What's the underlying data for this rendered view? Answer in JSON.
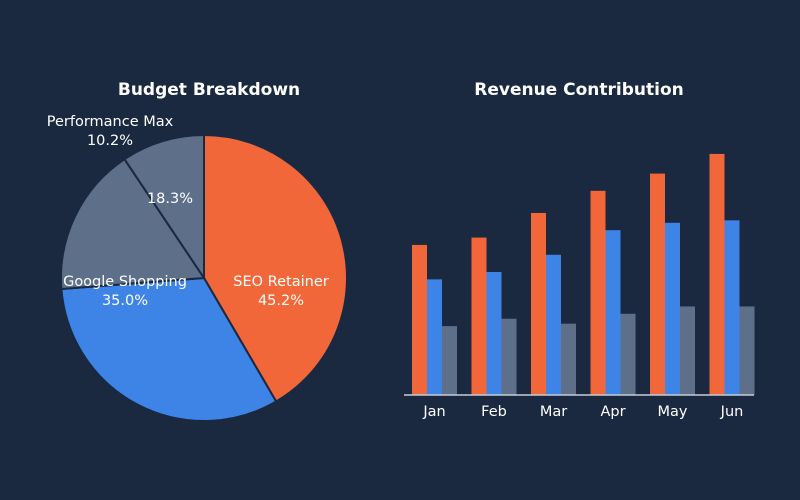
{
  "colors": {
    "background": "#1a2940",
    "orange": "#f26739",
    "blue": "#3e83e6",
    "slate": "#5e6f8a",
    "axis": "#c5ccd6",
    "text": "#ffffff"
  },
  "chart_data": [
    {
      "type": "pie",
      "title": "Budget Breakdown",
      "slices": [
        {
          "name": "SEO Retainer",
          "value": 45.2,
          "value_label": "45.2%",
          "color": "#f26739"
        },
        {
          "name": "Google Shopping",
          "value": 35.0,
          "value_label": "35.0%",
          "color": "#3e83e6"
        },
        {
          "name": "",
          "value": 18.3,
          "value_label": "18.3%",
          "color": "#5e6f8a"
        },
        {
          "name": "Performance Max",
          "value": 10.2,
          "value_label": "10.2%",
          "color": "#5e6f8a"
        }
      ]
    },
    {
      "type": "bar",
      "title": "Revenue Contribution",
      "categories": [
        "Jan",
        "Feb",
        "Mar",
        "Apr",
        "May",
        "Jun"
      ],
      "ylim": [
        0,
        100
      ],
      "grid": false,
      "legend": "none",
      "series": [
        {
          "values": [
            61,
            64,
            74,
            83,
            90,
            98
          ],
          "color": "#f26739"
        },
        {
          "values": [
            47,
            50,
            57,
            67,
            70,
            71
          ],
          "color": "#3e83e6"
        },
        {
          "values": [
            28,
            31,
            29,
            33,
            36,
            36
          ],
          "color": "#5e6f8a"
        }
      ]
    }
  ]
}
